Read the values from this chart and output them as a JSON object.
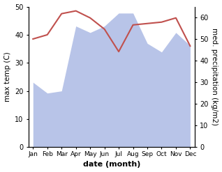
{
  "months": [
    "Jan",
    "Feb",
    "Mar",
    "Apr",
    "May",
    "Jun",
    "Jul",
    "Aug",
    "Sep",
    "Oct",
    "Nov",
    "Dec"
  ],
  "month_indices": [
    0,
    1,
    2,
    3,
    4,
    5,
    6,
    7,
    8,
    9,
    10,
    11
  ],
  "temperature": [
    38.5,
    40.0,
    47.5,
    48.5,
    46.0,
    42.0,
    34.0,
    43.5,
    44.0,
    44.5,
    46.0,
    36.0
  ],
  "precipitation": [
    30.0,
    25.0,
    26.0,
    56.0,
    53.0,
    56.0,
    62.0,
    62.0,
    48.0,
    44.0,
    53.0,
    47.0
  ],
  "temp_color": "#c0504d",
  "precip_fill_color": "#b8c4e8",
  "temp_ylim": [
    0,
    50
  ],
  "precip_ylim": [
    0,
    65
  ],
  "temp_ylabel": "max temp (C)",
  "precip_ylabel": "med. precipitation (kg/m2)",
  "xlabel": "date (month)",
  "temp_yticks": [
    0,
    10,
    20,
    30,
    40,
    50
  ],
  "precip_yticks": [
    0,
    10,
    20,
    30,
    40,
    50,
    60
  ],
  "background_color": "#ffffff"
}
